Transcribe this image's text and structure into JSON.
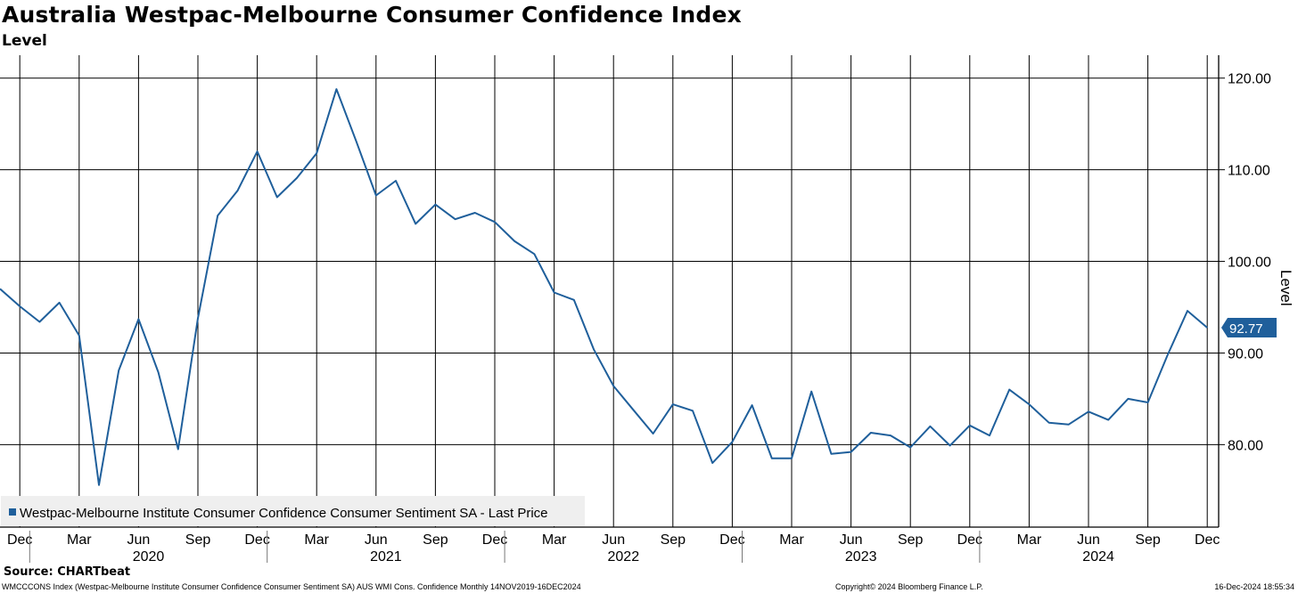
{
  "header": {
    "title": "Australia Westpac-Melbourne Consumer Confidence Index",
    "subtitle": "Level"
  },
  "footer": {
    "source": "Source: CHARTbeat",
    "security_info": "WMCCCONS Index (Westpac-Melbourne Institute Consumer Confidence Consumer Sentiment SA) AUS WMI Cons. Confidence  Monthly 14NOV2019-16DEC2024",
    "copyright": "Copyright© 2024 Bloomberg Finance L.P.",
    "timestamp": "16-Dec-2024 18:55:34"
  },
  "chart_data": {
    "type": "line",
    "title": "Australia Westpac-Melbourne Consumer Confidence Index",
    "subtitle": "Level",
    "ylabel": "Level",
    "ylim": [
      71.0,
      122.5
    ],
    "yticks": [
      80,
      90,
      100,
      110,
      120
    ],
    "ytick_labels": [
      "80.00",
      "90.00",
      "100.00",
      "110.00",
      "120.00"
    ],
    "x_start": "Nov 2019",
    "x_end": "Dec 2024",
    "month_ticks": [
      "Dec",
      "Mar",
      "Jun",
      "Sep",
      "Dec",
      "Mar",
      "Jun",
      "Sep",
      "Dec",
      "Mar",
      "Jun",
      "Sep",
      "Dec",
      "Mar",
      "Jun",
      "Sep",
      "Dec",
      "Mar",
      "Jun",
      "Sep",
      "Dec"
    ],
    "year_labels": [
      "2020",
      "2021",
      "2022",
      "2023",
      "2024"
    ],
    "last_value_label": "92.77",
    "legend": "Westpac-Melbourne Institute Consumer Confidence Consumer Sentiment SA - Last Price",
    "colors": {
      "series": "#1f5f9b",
      "grid": "#000000",
      "legend_bg": "#efefef",
      "last_value_bg": "#1f5f9b"
    },
    "series": [
      {
        "name": "Westpac-Melbourne Institute Consumer Confidence Consumer Sentiment SA - Last Price",
        "x": [
          "2019-11",
          "2019-12",
          "2020-01",
          "2020-02",
          "2020-03",
          "2020-04",
          "2020-05",
          "2020-06",
          "2020-07",
          "2020-08",
          "2020-09",
          "2020-10",
          "2020-11",
          "2020-12",
          "2021-01",
          "2021-02",
          "2021-03",
          "2021-04",
          "2021-05",
          "2021-06",
          "2021-07",
          "2021-08",
          "2021-09",
          "2021-10",
          "2021-11",
          "2021-12",
          "2022-01",
          "2022-02",
          "2022-03",
          "2022-04",
          "2022-05",
          "2022-06",
          "2022-07",
          "2022-08",
          "2022-09",
          "2022-10",
          "2022-11",
          "2022-12",
          "2023-01",
          "2023-02",
          "2023-03",
          "2023-04",
          "2023-05",
          "2023-06",
          "2023-07",
          "2023-08",
          "2023-09",
          "2023-10",
          "2023-11",
          "2023-12",
          "2024-01",
          "2024-02",
          "2024-03",
          "2024-04",
          "2024-05",
          "2024-06",
          "2024-07",
          "2024-08",
          "2024-09",
          "2024-10",
          "2024-11",
          "2024-12"
        ],
        "values": [
          97.0,
          95.1,
          93.4,
          95.5,
          91.9,
          75.6,
          88.1,
          93.7,
          87.9,
          79.5,
          93.8,
          105.0,
          107.7,
          112.0,
          107.0,
          109.1,
          111.8,
          118.8,
          113.1,
          107.2,
          108.8,
          104.1,
          106.2,
          104.6,
          105.3,
          104.3,
          102.2,
          100.8,
          96.6,
          95.8,
          90.4,
          86.4,
          83.8,
          81.2,
          84.4,
          83.7,
          78.0,
          80.3,
          84.3,
          78.5,
          78.5,
          85.8,
          79.0,
          79.2,
          81.3,
          81.0,
          79.7,
          82.0,
          79.9,
          82.1,
          81.0,
          86.0,
          84.4,
          82.4,
          82.2,
          83.6,
          82.7,
          85.0,
          84.6,
          89.8,
          94.6,
          92.77
        ]
      }
    ]
  }
}
